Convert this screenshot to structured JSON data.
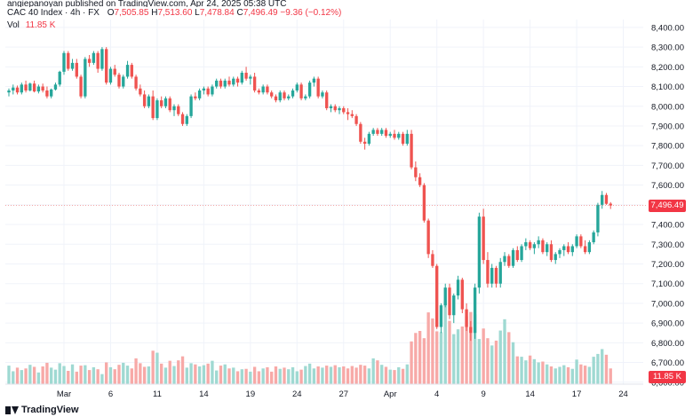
{
  "header": {
    "published": "angiepanoyan published on TradingView.com, Apr 24, 2025 05:38 UTC",
    "symbol": "CAC 40 Index · 4h · FX",
    "o_label": "O",
    "o_value": "7,505.85",
    "h_label": "H",
    "h_value": "7,513.60",
    "l_label": "L",
    "l_value": "7,478.84",
    "c_label": "C",
    "c_value": "7,496.49",
    "change": "−9.36 (−0.12%)",
    "vol_label": "Vol",
    "vol_value": "11.85 K"
  },
  "footer": {
    "brand": "TradingView"
  },
  "tags": {
    "last_price": "7,496.49",
    "last_volume": "11.85 K"
  },
  "colors": {
    "up": "#26A69A",
    "down": "#EF5350",
    "up_vol": "#9FD9D2",
    "down_vol": "#F7A9A7",
    "grid": "#f0f3fa"
  },
  "chart_data": {
    "type": "candlestick",
    "title": "CAC 40 Index · 4h · FX",
    "yticks": [
      "8,400.00",
      "8,300.00",
      "8,200.00",
      "8,100.00",
      "8,000.00",
      "7,900.00",
      "7,800.00",
      "7,700.00",
      "7,600.00",
      "7,500.00",
      "7,400.00",
      "7,300.00",
      "7,200.00",
      "7,100.00",
      "7,000.00",
      "6,900.00",
      "6,800.00",
      "6,700.00",
      "6,600.00"
    ],
    "ylim": [
      6590,
      8440
    ],
    "xticks": [
      {
        "label": "Mar",
        "index": 13
      },
      {
        "label": "6",
        "index": 24
      },
      {
        "label": "11",
        "index": 35
      },
      {
        "label": "14",
        "index": 46
      },
      {
        "label": "19",
        "index": 57
      },
      {
        "label": "24",
        "index": 68
      },
      {
        "label": "27",
        "index": 79
      },
      {
        "label": "Apr",
        "index": 90
      },
      {
        "label": "4",
        "index": 101
      },
      {
        "label": "9",
        "index": 112
      },
      {
        "label": "14",
        "index": 123
      },
      {
        "label": "17",
        "index": 134
      },
      {
        "label": "24",
        "index": 145
      }
    ],
    "last_price": 7496.49,
    "candles": [
      [
        8070,
        8090,
        8050,
        8080,
        4.6
      ],
      [
        8080,
        8110,
        8060,
        8095,
        3.2
      ],
      [
        8095,
        8105,
        8060,
        8070,
        4.1
      ],
      [
        8070,
        8120,
        8060,
        8110,
        3.5
      ],
      [
        8110,
        8130,
        8070,
        8080,
        3.9
      ],
      [
        8080,
        8120,
        8075,
        8115,
        4.8
      ],
      [
        8115,
        8130,
        8070,
        8075,
        4.3
      ],
      [
        8075,
        8110,
        8065,
        8100,
        2.9
      ],
      [
        8100,
        8115,
        8070,
        8080,
        4.4
      ],
      [
        8080,
        8100,
        8040,
        8050,
        5.3
      ],
      [
        8050,
        8090,
        8040,
        8085,
        4.1
      ],
      [
        8085,
        8120,
        8080,
        8110,
        3.6
      ],
      [
        8110,
        8180,
        8100,
        8175,
        5.2
      ],
      [
        8175,
        8280,
        8160,
        8270,
        4.5
      ],
      [
        8270,
        8280,
        8180,
        8190,
        3.3
      ],
      [
        8190,
        8240,
        8180,
        8220,
        4.9
      ],
      [
        8220,
        8240,
        8140,
        8150,
        3.1
      ],
      [
        8150,
        8160,
        8040,
        8050,
        4.6
      ],
      [
        8050,
        8250,
        8040,
        8240,
        4.7
      ],
      [
        8240,
        8260,
        8200,
        8220,
        3.5
      ],
      [
        8220,
        8280,
        8210,
        8270,
        4.2
      ],
      [
        8270,
        8280,
        8170,
        8190,
        3.7
      ],
      [
        8190,
        8300,
        8180,
        8290,
        2.5
      ],
      [
        8290,
        8300,
        8110,
        8120,
        5.4
      ],
      [
        8120,
        8200,
        8110,
        8190,
        4.2
      ],
      [
        8190,
        8210,
        8150,
        8160,
        3.7
      ],
      [
        8160,
        8170,
        8090,
        8100,
        4.8
      ],
      [
        8100,
        8160,
        8090,
        8150,
        5.3
      ],
      [
        8150,
        8230,
        8140,
        8210,
        4.6
      ],
      [
        8210,
        8220,
        8140,
        8150,
        3.9
      ],
      [
        8150,
        8160,
        8080,
        8090,
        6.4
      ],
      [
        8090,
        8110,
        8050,
        8060,
        5.2
      ],
      [
        8060,
        8080,
        7990,
        8000,
        4.3
      ],
      [
        8000,
        8060,
        7990,
        8050,
        4.4
      ],
      [
        8050,
        8080,
        7930,
        7940,
        8.3
      ],
      [
        7940,
        8040,
        7930,
        8030,
        7.8
      ],
      [
        8030,
        8050,
        7990,
        8000,
        5.1
      ],
      [
        8000,
        8050,
        7990,
        8040,
        4.1
      ],
      [
        8040,
        8050,
        7970,
        7980,
        5.8
      ],
      [
        7980,
        8010,
        7950,
        8000,
        4.5
      ],
      [
        8000,
        8010,
        7950,
        7960,
        5.9
      ],
      [
        7960,
        7970,
        7900,
        7910,
        6.9
      ],
      [
        7910,
        7960,
        7900,
        7950,
        4.1
      ],
      [
        7950,
        8060,
        7940,
        8050,
        5.2
      ],
      [
        8050,
        8070,
        8030,
        8040,
        4.9
      ],
      [
        8040,
        8090,
        8030,
        8080,
        4.4
      ],
      [
        8080,
        8100,
        8060,
        8090,
        4.7
      ],
      [
        8090,
        8100,
        8050,
        8060,
        5.1
      ],
      [
        8060,
        8110,
        8050,
        8100,
        5.8
      ],
      [
        8100,
        8140,
        8090,
        8130,
        3.4
      ],
      [
        8130,
        8140,
        8090,
        8100,
        4.6
      ],
      [
        8100,
        8140,
        8090,
        8130,
        4.9
      ],
      [
        8130,
        8150,
        8100,
        8110,
        3.9
      ],
      [
        8110,
        8150,
        8100,
        8140,
        4.1
      ],
      [
        8140,
        8150,
        8100,
        8120,
        3.2
      ],
      [
        8120,
        8180,
        8110,
        8170,
        3.7
      ],
      [
        8170,
        8200,
        8130,
        8140,
        3.8
      ],
      [
        8140,
        8160,
        8110,
        8150,
        3.1
      ],
      [
        8150,
        8170,
        8070,
        8080,
        4.3
      ],
      [
        8080,
        8090,
        8060,
        8070,
        3.2
      ],
      [
        8070,
        8110,
        8060,
        8100,
        3.9
      ],
      [
        8100,
        8110,
        8060,
        8070,
        4.2
      ],
      [
        8070,
        8080,
        8040,
        8050,
        3.1
      ],
      [
        8050,
        8060,
        8020,
        8030,
        4.4
      ],
      [
        8030,
        8080,
        8020,
        8070,
        3.8
      ],
      [
        8070,
        8080,
        8030,
        8040,
        4.1
      ],
      [
        8040,
        8060,
        8030,
        8050,
        3.7
      ],
      [
        8050,
        8090,
        8040,
        8080,
        4.2
      ],
      [
        8080,
        8120,
        8070,
        8110,
        3.2
      ],
      [
        8110,
        8120,
        8030,
        8040,
        3.6
      ],
      [
        8040,
        8060,
        8030,
        8050,
        4.5
      ],
      [
        8050,
        8130,
        8040,
        8120,
        5.1
      ],
      [
        8120,
        8150,
        8100,
        8140,
        3.9
      ],
      [
        8140,
        8150,
        8040,
        8050,
        4.4
      ],
      [
        8050,
        8080,
        8040,
        8070,
        4.1
      ],
      [
        8070,
        8080,
        7980,
        7990,
        4.6
      ],
      [
        7990,
        8010,
        7970,
        8000,
        4.3
      ],
      [
        8000,
        8010,
        7970,
        7980,
        4.7
      ],
      [
        7980,
        8000,
        7960,
        7990,
        4.2
      ],
      [
        7990,
        8000,
        7960,
        7970,
        4.4
      ],
      [
        7970,
        7990,
        7930,
        7960,
        3.9
      ],
      [
        7960,
        7980,
        7940,
        7950,
        4.5
      ],
      [
        7950,
        7960,
        7900,
        7910,
        4.1
      ],
      [
        7910,
        7920,
        7810,
        7820,
        4.8
      ],
      [
        7820,
        7840,
        7780,
        7810,
        4.6
      ],
      [
        7810,
        7870,
        7800,
        7860,
        3.9
      ],
      [
        7860,
        7890,
        7850,
        7880,
        6.4
      ],
      [
        7880,
        7890,
        7850,
        7860,
        5.9
      ],
      [
        7860,
        7890,
        7850,
        7880,
        4.8
      ],
      [
        7880,
        7890,
        7840,
        7850,
        4.3
      ],
      [
        7850,
        7870,
        7840,
        7860,
        3.6
      ],
      [
        7860,
        7880,
        7830,
        7840,
        3.5
      ],
      [
        7840,
        7870,
        7830,
        7860,
        4.2
      ],
      [
        7860,
        7870,
        7800,
        7810,
        3.8
      ],
      [
        7810,
        7880,
        7800,
        7860,
        4.9
      ],
      [
        7860,
        7880,
        7680,
        7690,
        10.6
      ],
      [
        7690,
        7720,
        7620,
        7640,
        12.7
      ],
      [
        7640,
        7660,
        7590,
        7600,
        13.2
      ],
      [
        7600,
        7610,
        7410,
        7420,
        11.4
      ],
      [
        7420,
        7430,
        7230,
        7250,
        17.8
      ],
      [
        7250,
        7270,
        7180,
        7190,
        16.3
      ],
      [
        7190,
        7200,
        6870,
        6880,
        13.1
      ],
      [
        6880,
        7000,
        6850,
        6990,
        12.9
      ],
      [
        6990,
        7100,
        6980,
        7080,
        20.8
      ],
      [
        7080,
        7100,
        6920,
        6940,
        15.7
      ],
      [
        6940,
        7050,
        6900,
        7040,
        12.4
      ],
      [
        7040,
        7140,
        7020,
        7120,
        13.6
      ],
      [
        7120,
        7130,
        6950,
        6970,
        14.3
      ],
      [
        6970,
        7000,
        6860,
        6880,
        16.8
      ],
      [
        6880,
        6910,
        6810,
        6850,
        17.9
      ],
      [
        6850,
        7100,
        6820,
        7080,
        17.3
      ],
      [
        7080,
        7460,
        7050,
        7440,
        11.2
      ],
      [
        7440,
        7480,
        7200,
        7220,
        13.8
      ],
      [
        7220,
        7260,
        7080,
        7100,
        11.4
      ],
      [
        7100,
        7200,
        7080,
        7180,
        9.6
      ],
      [
        7180,
        7190,
        7080,
        7100,
        10.8
      ],
      [
        7100,
        7230,
        7080,
        7210,
        13.3
      ],
      [
        7210,
        7260,
        7190,
        7240,
        16.1
      ],
      [
        7240,
        7250,
        7180,
        7190,
        12.9
      ],
      [
        7190,
        7280,
        7180,
        7270,
        10.4
      ],
      [
        7270,
        7290,
        7210,
        7220,
        6.9
      ],
      [
        7220,
        7300,
        7210,
        7290,
        6.8
      ],
      [
        7290,
        7330,
        7270,
        7310,
        5.9
      ],
      [
        7310,
        7320,
        7270,
        7280,
        7.1
      ],
      [
        7280,
        7310,
        7250,
        7300,
        6.2
      ],
      [
        7300,
        7340,
        7280,
        7320,
        5.4
      ],
      [
        7320,
        7330,
        7250,
        7260,
        5.6
      ],
      [
        7260,
        7310,
        7240,
        7300,
        4.9
      ],
      [
        7300,
        7320,
        7210,
        7220,
        4.4
      ],
      [
        7220,
        7260,
        7200,
        7250,
        3.9
      ],
      [
        7250,
        7280,
        7230,
        7270,
        4.3
      ],
      [
        7270,
        7300,
        7240,
        7290,
        4.7
      ],
      [
        7290,
        7310,
        7250,
        7260,
        4.2
      ],
      [
        7260,
        7300,
        7240,
        7290,
        3.8
      ],
      [
        7290,
        7350,
        7280,
        7340,
        6.1
      ],
      [
        7340,
        7350,
        7280,
        7290,
        4.9
      ],
      [
        7290,
        7320,
        7250,
        7260,
        4.6
      ],
      [
        7260,
        7320,
        7250,
        7310,
        4.3
      ],
      [
        7310,
        7370,
        7300,
        7360,
        6.8
      ],
      [
        7360,
        7510,
        7340,
        7500,
        7.5
      ],
      [
        7500,
        7570,
        7480,
        7550,
        8.7
      ],
      [
        7550,
        7560,
        7500,
        7505,
        7.3
      ],
      [
        7505.85,
        7513.6,
        7478.84,
        7496.49,
        3.9
      ]
    ]
  }
}
